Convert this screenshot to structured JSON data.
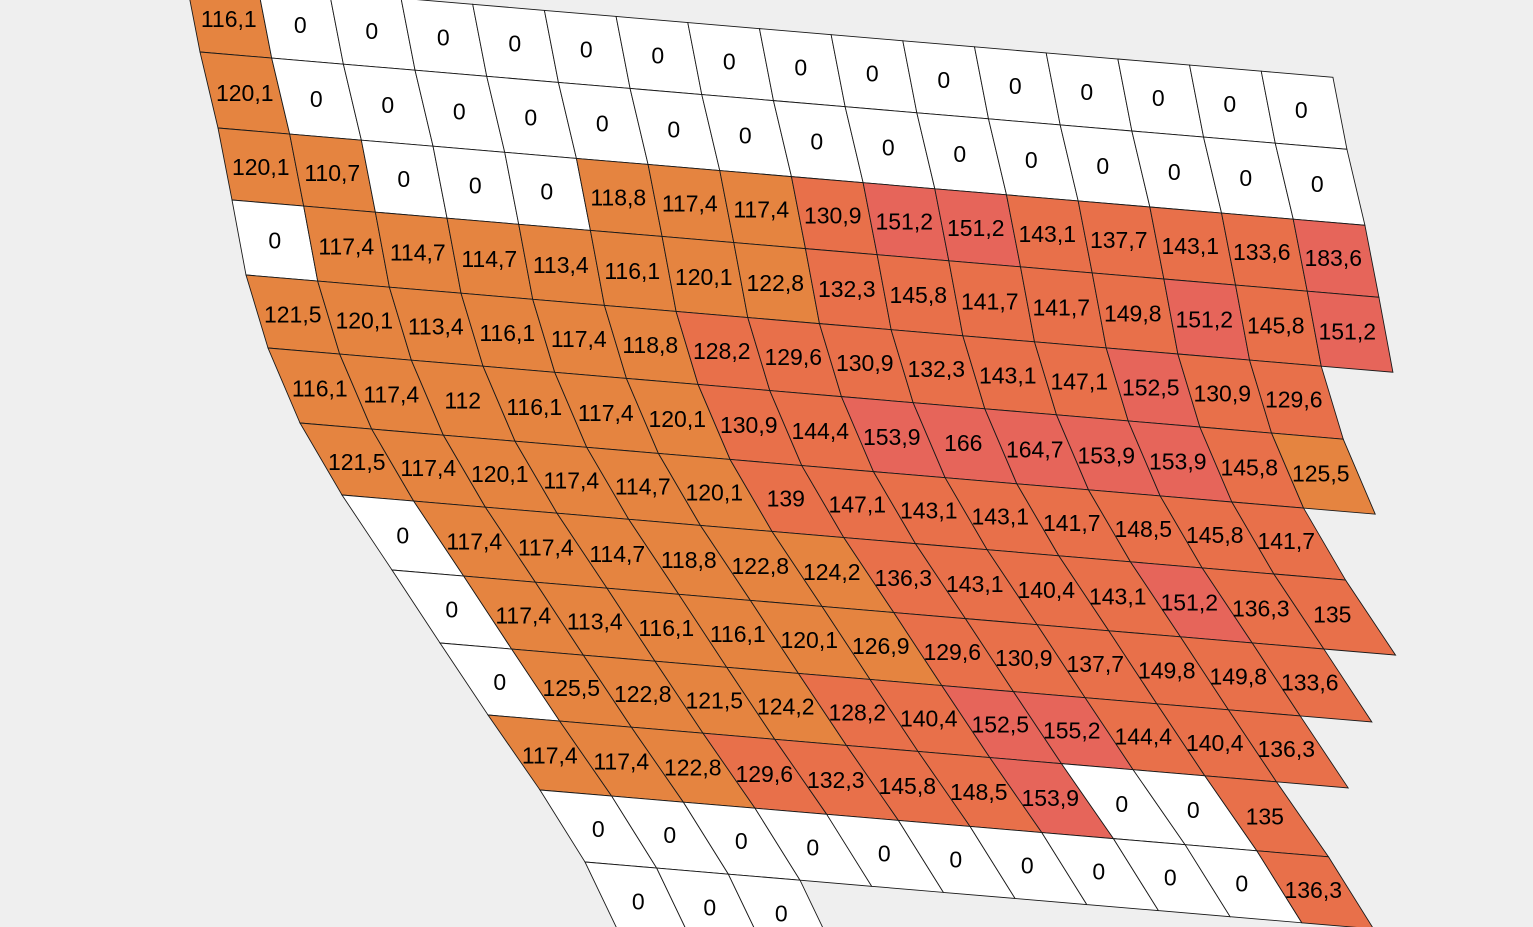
{
  "map": {
    "title": "",
    "colors": {
      "background": "#efefef",
      "zero": "#ffffff",
      "low": "#e58440",
      "mid": "#e8704a",
      "high": "#e6655a",
      "gridline": "#1a1a1a",
      "text": "#000000"
    },
    "rows": [
      {
        "row": 0,
        "cells": [
          {
            "c": 0,
            "v": "116,1"
          },
          {
            "c": 1,
            "v": "0"
          },
          {
            "c": 2,
            "v": "0"
          },
          {
            "c": 3,
            "v": "0"
          },
          {
            "c": 4,
            "v": "0"
          },
          {
            "c": 5,
            "v": "0"
          },
          {
            "c": 6,
            "v": "0"
          },
          {
            "c": 7,
            "v": "0"
          },
          {
            "c": 8,
            "v": "0"
          },
          {
            "c": 9,
            "v": "0"
          },
          {
            "c": 10,
            "v": "0"
          },
          {
            "c": 11,
            "v": "0"
          },
          {
            "c": 12,
            "v": "0"
          },
          {
            "c": 13,
            "v": "0"
          },
          {
            "c": 14,
            "v": "0"
          },
          {
            "c": 15,
            "v": "0"
          }
        ]
      },
      {
        "row": 1,
        "cells": [
          {
            "c": 0,
            "v": "120,1"
          },
          {
            "c": 1,
            "v": "0"
          },
          {
            "c": 2,
            "v": "0"
          },
          {
            "c": 3,
            "v": "0"
          },
          {
            "c": 4,
            "v": "0"
          },
          {
            "c": 5,
            "v": "0"
          },
          {
            "c": 6,
            "v": "0"
          },
          {
            "c": 7,
            "v": "0"
          },
          {
            "c": 8,
            "v": "0"
          },
          {
            "c": 9,
            "v": "0"
          },
          {
            "c": 10,
            "v": "0"
          },
          {
            "c": 11,
            "v": "0"
          },
          {
            "c": 12,
            "v": "0"
          },
          {
            "c": 13,
            "v": "0"
          },
          {
            "c": 14,
            "v": "0"
          },
          {
            "c": 15,
            "v": "0"
          }
        ]
      },
      {
        "row": 2,
        "cells": [
          {
            "c": 0,
            "v": "120,1"
          },
          {
            "c": 1,
            "v": "110,7"
          },
          {
            "c": 2,
            "v": "0"
          },
          {
            "c": 3,
            "v": "0"
          },
          {
            "c": 4,
            "v": "0"
          },
          {
            "c": 5,
            "v": "118,8"
          },
          {
            "c": 6,
            "v": "117,4"
          },
          {
            "c": 7,
            "v": "117,4"
          },
          {
            "c": 8,
            "v": "130,9"
          },
          {
            "c": 9,
            "v": "151,2"
          },
          {
            "c": 10,
            "v": "151,2"
          },
          {
            "c": 11,
            "v": "143,1"
          },
          {
            "c": 12,
            "v": "137,7"
          },
          {
            "c": 13,
            "v": "143,1"
          },
          {
            "c": 14,
            "v": "133,6"
          },
          {
            "c": 15,
            "v": "183,6"
          }
        ]
      },
      {
        "row": 3,
        "cells": [
          {
            "c": 0,
            "v": "0"
          },
          {
            "c": 1,
            "v": "117,4"
          },
          {
            "c": 2,
            "v": "114,7"
          },
          {
            "c": 3,
            "v": "114,7"
          },
          {
            "c": 4,
            "v": "113,4"
          },
          {
            "c": 5,
            "v": "116,1"
          },
          {
            "c": 6,
            "v": "120,1"
          },
          {
            "c": 7,
            "v": "122,8"
          },
          {
            "c": 8,
            "v": "132,3"
          },
          {
            "c": 9,
            "v": "145,8"
          },
          {
            "c": 10,
            "v": "141,7"
          },
          {
            "c": 11,
            "v": "141,7"
          },
          {
            "c": 12,
            "v": "149,8"
          },
          {
            "c": 13,
            "v": "151,2"
          },
          {
            "c": 14,
            "v": "145,8"
          },
          {
            "c": 15,
            "v": "151,2"
          }
        ]
      },
      {
        "row": 4,
        "cells": [
          {
            "c": 0,
            "v": "121,5"
          },
          {
            "c": 1,
            "v": "120,1"
          },
          {
            "c": 2,
            "v": "113,4"
          },
          {
            "c": 3,
            "v": "116,1"
          },
          {
            "c": 4,
            "v": "117,4"
          },
          {
            "c": 5,
            "v": "118,8"
          },
          {
            "c": 6,
            "v": "128,2"
          },
          {
            "c": 7,
            "v": "129,6"
          },
          {
            "c": 8,
            "v": "130,9"
          },
          {
            "c": 9,
            "v": "132,3"
          },
          {
            "c": 10,
            "v": "143,1"
          },
          {
            "c": 11,
            "v": "147,1"
          },
          {
            "c": 12,
            "v": "152,5"
          },
          {
            "c": 13,
            "v": "130,9"
          },
          {
            "c": 14,
            "v": "129,6"
          }
        ]
      },
      {
        "row": 5,
        "cells": [
          {
            "c": 0,
            "v": "116,1"
          },
          {
            "c": 1,
            "v": "117,4"
          },
          {
            "c": 2,
            "v": "112"
          },
          {
            "c": 3,
            "v": "116,1"
          },
          {
            "c": 4,
            "v": "117,4"
          },
          {
            "c": 5,
            "v": "120,1"
          },
          {
            "c": 6,
            "v": "130,9"
          },
          {
            "c": 7,
            "v": "144,4"
          },
          {
            "c": 8,
            "v": "153,9"
          },
          {
            "c": 9,
            "v": "166"
          },
          {
            "c": 10,
            "v": "164,7"
          },
          {
            "c": 11,
            "v": "153,9"
          },
          {
            "c": 12,
            "v": "153,9"
          },
          {
            "c": 13,
            "v": "145,8"
          },
          {
            "c": 14,
            "v": "125,5"
          }
        ]
      },
      {
        "row": 6,
        "cells": [
          {
            "c": 0,
            "v": "121,5"
          },
          {
            "c": 1,
            "v": "117,4"
          },
          {
            "c": 2,
            "v": "120,1"
          },
          {
            "c": 3,
            "v": "117,4"
          },
          {
            "c": 4,
            "v": "114,7"
          },
          {
            "c": 5,
            "v": "120,1"
          },
          {
            "c": 6,
            "v": "139"
          },
          {
            "c": 7,
            "v": "147,1"
          },
          {
            "c": 8,
            "v": "143,1"
          },
          {
            "c": 9,
            "v": "143,1"
          },
          {
            "c": 10,
            "v": "141,7"
          },
          {
            "c": 11,
            "v": "148,5"
          },
          {
            "c": 12,
            "v": "145,8"
          },
          {
            "c": 13,
            "v": "141,7"
          }
        ]
      },
      {
        "row": 7,
        "cells": [
          {
            "c": 0,
            "v": "0"
          },
          {
            "c": 1,
            "v": "117,4"
          },
          {
            "c": 2,
            "v": "117,4"
          },
          {
            "c": 3,
            "v": "114,7"
          },
          {
            "c": 4,
            "v": "118,8"
          },
          {
            "c": 5,
            "v": "122,8"
          },
          {
            "c": 6,
            "v": "124,2"
          },
          {
            "c": 7,
            "v": "136,3"
          },
          {
            "c": 8,
            "v": "143,1"
          },
          {
            "c": 9,
            "v": "140,4"
          },
          {
            "c": 10,
            "v": "143,1"
          },
          {
            "c": 11,
            "v": "151,2"
          },
          {
            "c": 12,
            "v": "136,3"
          },
          {
            "c": 13,
            "v": "135"
          }
        ]
      },
      {
        "row": 8,
        "cells": [
          {
            "c": 0,
            "v": "0"
          },
          {
            "c": 1,
            "v": "117,4"
          },
          {
            "c": 2,
            "v": "113,4"
          },
          {
            "c": 3,
            "v": "116,1"
          },
          {
            "c": 4,
            "v": "116,1"
          },
          {
            "c": 5,
            "v": "120,1"
          },
          {
            "c": 6,
            "v": "126,9"
          },
          {
            "c": 7,
            "v": "129,6"
          },
          {
            "c": 8,
            "v": "130,9"
          },
          {
            "c": 9,
            "v": "137,7"
          },
          {
            "c": 10,
            "v": "149,8"
          },
          {
            "c": 11,
            "v": "149,8"
          },
          {
            "c": 12,
            "v": "133,6"
          }
        ]
      },
      {
        "row": 9,
        "cells": [
          {
            "c": 0,
            "v": "0"
          },
          {
            "c": 1,
            "v": "125,5"
          },
          {
            "c": 2,
            "v": "122,8"
          },
          {
            "c": 3,
            "v": "121,5"
          },
          {
            "c": 4,
            "v": "124,2"
          },
          {
            "c": 5,
            "v": "128,2"
          },
          {
            "c": 6,
            "v": "140,4"
          },
          {
            "c": 7,
            "v": "152,5"
          },
          {
            "c": 8,
            "v": "155,2"
          },
          {
            "c": 9,
            "v": "144,4"
          },
          {
            "c": 10,
            "v": "140,4"
          },
          {
            "c": 11,
            "v": "136,3"
          }
        ]
      },
      {
        "row": 10,
        "cells": [
          {
            "c": 0,
            "v": "117,4"
          },
          {
            "c": 1,
            "v": "117,4"
          },
          {
            "c": 2,
            "v": "122,8"
          },
          {
            "c": 3,
            "v": "129,6"
          },
          {
            "c": 4,
            "v": "132,3"
          },
          {
            "c": 5,
            "v": "145,8"
          },
          {
            "c": 6,
            "v": "148,5"
          },
          {
            "c": 7,
            "v": "153,9"
          },
          {
            "c": 8,
            "v": "0"
          },
          {
            "c": 9,
            "v": "0"
          },
          {
            "c": 10,
            "v": "135"
          }
        ]
      },
      {
        "row": 11,
        "cells": [
          {
            "c": 0,
            "v": "0"
          },
          {
            "c": 1,
            "v": "0"
          },
          {
            "c": 2,
            "v": "0"
          },
          {
            "c": 3,
            "v": "0"
          },
          {
            "c": 4,
            "v": "0"
          },
          {
            "c": 5,
            "v": "0"
          },
          {
            "c": 6,
            "v": "0"
          },
          {
            "c": 7,
            "v": "0"
          },
          {
            "c": 8,
            "v": "0"
          },
          {
            "c": 9,
            "v": "0"
          },
          {
            "c": 10,
            "v": "136,3"
          }
        ]
      },
      {
        "row": 12,
        "cells": [
          {
            "c": 0,
            "v": "0"
          },
          {
            "c": 1,
            "v": "0"
          },
          {
            "c": 2,
            "v": "0"
          }
        ]
      }
    ]
  }
}
